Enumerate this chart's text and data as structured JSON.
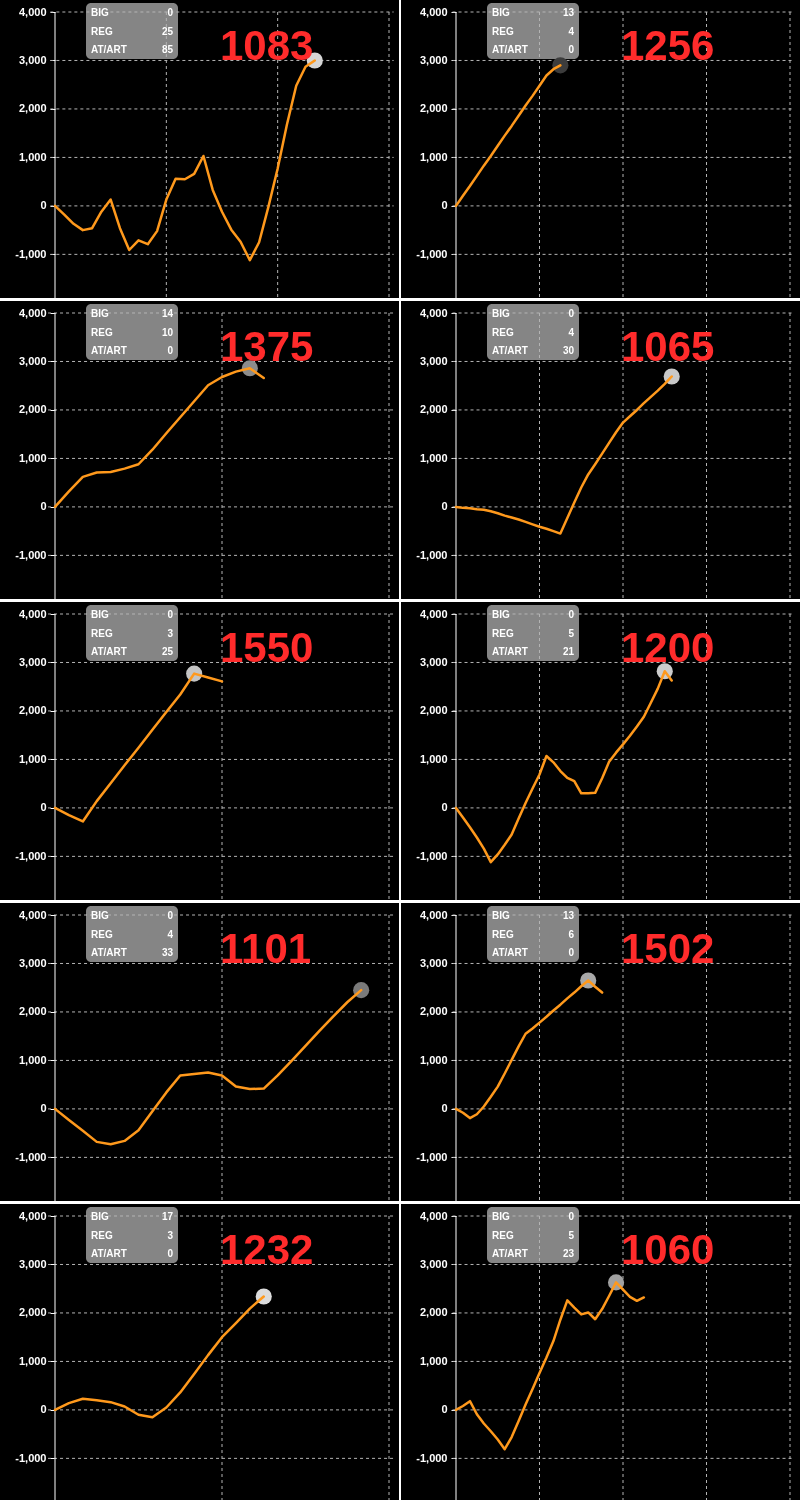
{
  "chart_data": [
    {
      "type": "line",
      "title": "1083",
      "annotations": [
        "BIG",
        "0",
        "REG",
        "25",
        "AT/ART",
        "85"
      ],
      "grid": true,
      "tick_labels": "y",
      "ylim": [
        -1900,
        4000
      ],
      "yticks": [
        {
          "value": -1000,
          "label": "-1,000"
        },
        0,
        {
          "value": 1000,
          "label": "1,000"
        },
        {
          "value": 2000,
          "label": "2,000"
        },
        {
          "value": 3000,
          "label": "3,000"
        },
        {
          "value": 4000,
          "label": "4,000"
        }
      ],
      "categories": [
        null,
        null,
        null,
        null,
        null,
        null,
        null,
        null,
        null,
        null,
        null,
        null,
        null,
        null,
        null,
        null,
        null,
        null,
        null,
        null,
        null,
        null,
        null,
        null,
        null,
        null,
        null,
        null,
        null,
        null,
        null,
        null,
        null,
        null,
        null,
        null,
        null
      ],
      "series": [
        {
          "color": "#ff991c",
          "values": [
            0,
            -180,
            -370,
            -500,
            -460,
            -120,
            130,
            -460,
            -910,
            -710,
            -790,
            -520,
            130,
            560,
            550,
            660,
            1030,
            330,
            -120,
            -490,
            -740,
            -1120,
            -750,
            -20,
            770,
            1680,
            2480,
            2870,
            3000,
            null,
            null,
            null,
            null,
            null,
            null,
            null,
            null
          ]
        },
        {
          "type": "scatter",
          "marker": "circle",
          "color": "#d6d6d6",
          "values": [
            null,
            null,
            null,
            null,
            null,
            null,
            null,
            null,
            null,
            null,
            null,
            null,
            null,
            null,
            null,
            null,
            null,
            null,
            null,
            null,
            null,
            null,
            null,
            null,
            null,
            null,
            null,
            null,
            3000,
            null,
            null,
            null,
            null,
            null,
            null,
            null,
            null
          ]
        }
      ]
    },
    {
      "type": "line",
      "title": "1256",
      "annotations": [
        "BIG",
        "13",
        "REG",
        "4",
        "AT/ART",
        "0"
      ],
      "grid": true,
      "tick_labels": "y",
      "ylim": [
        -1900,
        4000
      ],
      "yticks": [
        {
          "value": -1000,
          "label": "-1,000"
        },
        0,
        {
          "value": 1000,
          "label": "1,000"
        },
        {
          "value": 2000,
          "label": "2,000"
        },
        {
          "value": 3000,
          "label": "3,000"
        },
        {
          "value": 4000,
          "label": "4,000"
        }
      ],
      "categories": [
        null,
        null,
        null,
        null,
        null,
        null,
        null,
        null,
        null,
        null,
        null,
        null,
        null,
        null,
        null,
        null,
        null,
        null,
        null,
        null,
        null,
        null,
        null,
        null,
        null,
        null,
        null,
        null,
        null,
        null,
        null,
        null,
        null,
        null,
        null,
        null,
        null,
        null,
        null,
        null,
        null,
        null,
        null,
        null,
        null,
        null,
        null,
        null,
        null
      ],
      "series": [
        {
          "color": "#ff991c",
          "values": [
            0,
            210,
            410,
            620,
            830,
            1030,
            1240,
            1450,
            1650,
            1860,
            2070,
            2270,
            2480,
            2690,
            2820,
            2900,
            null,
            null,
            null,
            null,
            null,
            null,
            null,
            null,
            null,
            null,
            null,
            null,
            null,
            null,
            null,
            null,
            null,
            null,
            null,
            null,
            null,
            null,
            null,
            null,
            null,
            null,
            null,
            null,
            null,
            null,
            null,
            null,
            null
          ]
        },
        {
          "type": "scatter",
          "marker": "circle",
          "color": "#3c3c3c",
          "values": [
            null,
            null,
            null,
            null,
            null,
            null,
            null,
            null,
            null,
            null,
            null,
            null,
            null,
            null,
            null,
            2900,
            null,
            null,
            null,
            null,
            null,
            null,
            null,
            null,
            null,
            null,
            null,
            null,
            null,
            null,
            null,
            null,
            null,
            null,
            null,
            null,
            null,
            null,
            null,
            null,
            null,
            null,
            null,
            null,
            null,
            null,
            null,
            null,
            null
          ]
        }
      ]
    },
    {
      "type": "line",
      "title": "1375",
      "annotations": [
        "BIG",
        "14",
        "REG",
        "10",
        "AT/ART",
        "0"
      ],
      "grid": true,
      "tick_labels": "y",
      "ylim": [
        -1900,
        4000
      ],
      "yticks": [
        {
          "value": -1000,
          "label": "-1,000"
        },
        0,
        {
          "value": 1000,
          "label": "1,000"
        },
        {
          "value": 2000,
          "label": "2,000"
        },
        {
          "value": 3000,
          "label": "3,000"
        },
        {
          "value": 4000,
          "label": "4,000"
        }
      ],
      "categories": [
        null,
        null,
        null,
        null,
        null,
        null,
        null,
        null,
        null,
        null,
        null,
        null,
        null,
        null,
        null,
        null,
        null,
        null,
        null,
        null,
        null,
        null,
        null,
        null,
        null
      ],
      "series": [
        {
          "color": "#ff991c",
          "values": [
            0,
            320,
            620,
            710,
            720,
            790,
            880,
            1180,
            1520,
            1850,
            2180,
            2510,
            2680,
            2790,
            2860,
            2660,
            null,
            null,
            null,
            null,
            null,
            null,
            null,
            null,
            null
          ]
        },
        {
          "type": "scatter",
          "marker": "circle",
          "color": "#8c8c8c",
          "values": [
            null,
            null,
            null,
            null,
            null,
            null,
            null,
            null,
            null,
            null,
            null,
            null,
            null,
            null,
            2860,
            null,
            null,
            null,
            null,
            null,
            null,
            null,
            null,
            null,
            null
          ]
        }
      ]
    },
    {
      "type": "line",
      "title": "1065",
      "annotations": [
        "BIG",
        "0",
        "REG",
        "4",
        "AT/ART",
        "30"
      ],
      "grid": true,
      "tick_labels": "y",
      "ylim": [
        -1900,
        4000
      ],
      "yticks": [
        {
          "value": -1000,
          "label": "-1,000"
        },
        0,
        {
          "value": 1000,
          "label": "1,000"
        },
        {
          "value": 2000,
          "label": "2,000"
        },
        {
          "value": 3000,
          "label": "3,000"
        },
        {
          "value": 4000,
          "label": "4,000"
        }
      ],
      "categories": [
        null,
        null,
        null,
        null,
        null,
        null,
        null,
        null,
        null,
        null,
        null,
        null,
        null,
        null,
        null,
        null,
        null,
        null,
        null,
        null,
        null,
        null,
        null,
        null,
        null,
        null,
        null,
        null,
        null,
        null,
        null,
        null,
        null,
        null,
        null,
        null,
        null,
        null,
        null,
        null,
        null,
        null,
        null,
        null,
        null,
        null,
        null,
        null,
        null
      ],
      "series": [
        {
          "color": "#ff991c",
          "values": [
            0,
            -20,
            -30,
            -50,
            -60,
            -90,
            -130,
            -180,
            -220,
            -260,
            -310,
            -360,
            -410,
            -450,
            -500,
            -550,
            -230,
            90,
            400,
            670,
            880,
            1100,
            1320,
            1540,
            1740,
            1870,
            2000,
            2140,
            2270,
            2400,
            2540,
            2690,
            null,
            null,
            null,
            null,
            null,
            null,
            null,
            null,
            null,
            null,
            null,
            null,
            null,
            null,
            null,
            null,
            null
          ]
        },
        {
          "type": "scatter",
          "marker": "circle",
          "color": "#c8c8c8",
          "values": [
            null,
            null,
            null,
            null,
            null,
            null,
            null,
            null,
            null,
            null,
            null,
            null,
            null,
            null,
            null,
            null,
            null,
            null,
            null,
            null,
            null,
            null,
            null,
            null,
            null,
            null,
            null,
            null,
            null,
            null,
            null,
            2690,
            null,
            null,
            null,
            null,
            null,
            null,
            null,
            null,
            null,
            null,
            null,
            null,
            null,
            null,
            null,
            null,
            null
          ]
        }
      ]
    },
    {
      "type": "line",
      "title": "1550",
      "annotations": [
        "BIG",
        "0",
        "REG",
        "3",
        "AT/ART",
        "25"
      ],
      "grid": true,
      "tick_labels": "y",
      "ylim": [
        -1900,
        4000
      ],
      "yticks": [
        {
          "value": -1000,
          "label": "-1,000"
        },
        0,
        {
          "value": 1000,
          "label": "1,000"
        },
        {
          "value": 2000,
          "label": "2,000"
        },
        {
          "value": 3000,
          "label": "3,000"
        },
        {
          "value": 4000,
          "label": "4,000"
        }
      ],
      "categories": [
        null,
        null,
        null,
        null,
        null,
        null,
        null,
        null,
        null,
        null,
        null,
        null,
        null,
        null,
        null,
        null,
        null,
        null,
        null,
        null,
        null,
        null,
        null,
        null,
        null
      ],
      "series": [
        {
          "color": "#ff991c",
          "values": [
            0,
            -150,
            -280,
            140,
            510,
            880,
            1240,
            1610,
            1980,
            2340,
            2770,
            2690,
            2610,
            null,
            null,
            null,
            null,
            null,
            null,
            null,
            null,
            null,
            null,
            null,
            null
          ]
        },
        {
          "type": "scatter",
          "marker": "circle",
          "color": "#c4c4c4",
          "values": [
            null,
            null,
            null,
            null,
            null,
            null,
            null,
            null,
            null,
            null,
            2770,
            null,
            null,
            null,
            null,
            null,
            null,
            null,
            null,
            null,
            null,
            null,
            null,
            null,
            null
          ]
        }
      ]
    },
    {
      "type": "line",
      "title": "1200",
      "annotations": [
        "BIG",
        "0",
        "REG",
        "5",
        "AT/ART",
        "21"
      ],
      "grid": true,
      "tick_labels": "y",
      "ylim": [
        -1900,
        4000
      ],
      "yticks": [
        {
          "value": -1000,
          "label": "-1,000"
        },
        0,
        {
          "value": 1000,
          "label": "1,000"
        },
        {
          "value": 2000,
          "label": "2,000"
        },
        {
          "value": 3000,
          "label": "3,000"
        },
        {
          "value": 4000,
          "label": "4,000"
        }
      ],
      "categories": [
        null,
        null,
        null,
        null,
        null,
        null,
        null,
        null,
        null,
        null,
        null,
        null,
        null,
        null,
        null,
        null,
        null,
        null,
        null,
        null,
        null,
        null,
        null,
        null,
        null,
        null,
        null,
        null,
        null,
        null,
        null,
        null,
        null,
        null,
        null,
        null,
        null,
        null,
        null,
        null,
        null,
        null,
        null,
        null,
        null,
        null,
        null,
        null,
        null
      ],
      "series": [
        {
          "color": "#ff991c",
          "values": [
            0,
            -200,
            -400,
            -610,
            -840,
            -1120,
            -960,
            -760,
            -550,
            -220,
            100,
            400,
            690,
            1070,
            940,
            760,
            620,
            550,
            300,
            300,
            310,
            610,
            950,
            1140,
            1310,
            1490,
            1680,
            1880,
            2170,
            2460,
            2820,
            2630,
            null,
            null,
            null,
            null,
            null,
            null,
            null,
            null,
            null,
            null,
            null,
            null,
            null,
            null,
            null,
            null,
            null
          ]
        },
        {
          "type": "scatter",
          "marker": "circle",
          "color": "#cccccc",
          "values": [
            null,
            null,
            null,
            null,
            null,
            null,
            null,
            null,
            null,
            null,
            null,
            null,
            null,
            null,
            null,
            null,
            null,
            null,
            null,
            null,
            null,
            null,
            null,
            null,
            null,
            null,
            null,
            null,
            null,
            null,
            2820,
            null,
            null,
            null,
            null,
            null,
            null,
            null,
            null,
            null,
            null,
            null,
            null,
            null,
            null,
            null,
            null,
            null,
            null
          ]
        }
      ]
    },
    {
      "type": "line",
      "title": "1101",
      "annotations": [
        "BIG",
        "0",
        "REG",
        "4",
        "AT/ART",
        "33"
      ],
      "grid": true,
      "tick_labels": "y",
      "ylim": [
        -1900,
        4000
      ],
      "yticks": [
        {
          "value": -1000,
          "label": "-1,000"
        },
        0,
        {
          "value": 1000,
          "label": "1,000"
        },
        {
          "value": 2000,
          "label": "2,000"
        },
        {
          "value": 3000,
          "label": "3,000"
        },
        {
          "value": 4000,
          "label": "4,000"
        }
      ],
      "categories": [
        null,
        null,
        null,
        null,
        null,
        null,
        null,
        null,
        null,
        null,
        null,
        null,
        null,
        null,
        null,
        null,
        null,
        null,
        null,
        null,
        null,
        null,
        null,
        null,
        null
      ],
      "series": [
        {
          "color": "#ff991c",
          "values": [
            0,
            -230,
            -450,
            -680,
            -730,
            -660,
            -440,
            -50,
            340,
            690,
            720,
            750,
            690,
            460,
            410,
            420,
            690,
            990,
            1300,
            1610,
            1910,
            2200,
            2450,
            null,
            null
          ]
        },
        {
          "type": "scatter",
          "marker": "circle",
          "color": "#7a7a7a",
          "values": [
            null,
            null,
            null,
            null,
            null,
            null,
            null,
            null,
            null,
            null,
            null,
            null,
            null,
            null,
            null,
            null,
            null,
            null,
            null,
            null,
            null,
            null,
            2450,
            null,
            null
          ]
        }
      ]
    },
    {
      "type": "line",
      "title": "1502",
      "annotations": [
        "BIG",
        "13",
        "REG",
        "6",
        "AT/ART",
        "0"
      ],
      "grid": true,
      "tick_labels": "y",
      "ylim": [
        -1900,
        4000
      ],
      "yticks": [
        {
          "value": -1000,
          "label": "-1,000"
        },
        0,
        {
          "value": 1000,
          "label": "1,000"
        },
        {
          "value": 2000,
          "label": "2,000"
        },
        {
          "value": 3000,
          "label": "3,000"
        },
        {
          "value": 4000,
          "label": "4,000"
        }
      ],
      "categories": [
        null,
        null,
        null,
        null,
        null,
        null,
        null,
        null,
        null,
        null,
        null,
        null,
        null,
        null,
        null,
        null,
        null,
        null,
        null,
        null,
        null,
        null,
        null,
        null,
        null,
        null,
        null,
        null,
        null,
        null,
        null,
        null,
        null,
        null,
        null,
        null,
        null,
        null,
        null,
        null,
        null,
        null,
        null,
        null,
        null,
        null,
        null,
        null,
        null
      ],
      "series": [
        {
          "color": "#ff991c",
          "values": [
            0,
            -80,
            -190,
            -110,
            50,
            250,
            460,
            730,
            1010,
            1290,
            1550,
            1660,
            1780,
            1900,
            2030,
            2150,
            2280,
            2400,
            2530,
            2650,
            2520,
            2400,
            null,
            null,
            null,
            null,
            null,
            null,
            null,
            null,
            null,
            null,
            null,
            null,
            null,
            null,
            null,
            null,
            null,
            null,
            null,
            null,
            null,
            null,
            null,
            null,
            null,
            null,
            null
          ]
        },
        {
          "type": "scatter",
          "marker": "circle",
          "color": "#a8a8a8",
          "values": [
            null,
            null,
            null,
            null,
            null,
            null,
            null,
            null,
            null,
            null,
            null,
            null,
            null,
            null,
            null,
            null,
            null,
            null,
            null,
            2650,
            null,
            null,
            null,
            null,
            null,
            null,
            null,
            null,
            null,
            null,
            null,
            null,
            null,
            null,
            null,
            null,
            null,
            null,
            null,
            null,
            null,
            null,
            null,
            null,
            null,
            null,
            null,
            null,
            null
          ]
        }
      ]
    },
    {
      "type": "line",
      "title": "1232",
      "annotations": [
        "BIG",
        "17",
        "REG",
        "3",
        "AT/ART",
        "0"
      ],
      "grid": true,
      "tick_labels": "y",
      "ylim": [
        -1900,
        4000
      ],
      "yticks": [
        {
          "value": -1000,
          "label": "-1,000"
        },
        0,
        {
          "value": 1000,
          "label": "1,000"
        },
        {
          "value": 2000,
          "label": "2,000"
        },
        {
          "value": 3000,
          "label": "3,000"
        },
        {
          "value": 4000,
          "label": "4,000"
        }
      ],
      "categories": [
        null,
        null,
        null,
        null,
        null,
        null,
        null,
        null,
        null,
        null,
        null,
        null,
        null,
        null,
        null,
        null,
        null,
        null,
        null,
        null,
        null,
        null,
        null,
        null,
        null
      ],
      "series": [
        {
          "color": "#ff991c",
          "values": [
            0,
            140,
            230,
            200,
            160,
            70,
            -100,
            -150,
            50,
            360,
            740,
            1130,
            1500,
            1790,
            2090,
            2340,
            null,
            null,
            null,
            null,
            null,
            null,
            null,
            null,
            null
          ]
        },
        {
          "type": "scatter",
          "marker": "circle",
          "color": "#dcdcdc",
          "values": [
            null,
            null,
            null,
            null,
            null,
            null,
            null,
            null,
            null,
            null,
            null,
            null,
            null,
            null,
            null,
            2340,
            null,
            null,
            null,
            null,
            null,
            null,
            null,
            null,
            null
          ]
        }
      ]
    },
    {
      "type": "line",
      "title": "1060",
      "annotations": [
        "BIG",
        "0",
        "REG",
        "5",
        "AT/ART",
        "23"
      ],
      "grid": true,
      "tick_labels": "y",
      "ylim": [
        -1900,
        4000
      ],
      "yticks": [
        {
          "value": -1000,
          "label": "-1,000"
        },
        0,
        {
          "value": 1000,
          "label": "1,000"
        },
        {
          "value": 2000,
          "label": "2,000"
        },
        {
          "value": 3000,
          "label": "3,000"
        },
        {
          "value": 4000,
          "label": "4,000"
        }
      ],
      "categories": [
        null,
        null,
        null,
        null,
        null,
        null,
        null,
        null,
        null,
        null,
        null,
        null,
        null,
        null,
        null,
        null,
        null,
        null,
        null,
        null,
        null,
        null,
        null,
        null,
        null,
        null,
        null,
        null,
        null,
        null,
        null,
        null,
        null,
        null,
        null,
        null,
        null,
        null,
        null,
        null,
        null,
        null,
        null,
        null,
        null,
        null,
        null,
        null,
        null
      ],
      "series": [
        {
          "color": "#ff991c",
          "values": [
            0,
            80,
            180,
            -90,
            -280,
            -440,
            -610,
            -810,
            -560,
            -230,
            110,
            430,
            760,
            1080,
            1420,
            1860,
            2260,
            2110,
            1970,
            2010,
            1870,
            2080,
            2350,
            2630,
            2480,
            2330,
            2250,
            2320,
            null,
            null,
            null,
            null,
            null,
            null,
            null,
            null,
            null,
            null,
            null,
            null,
            null,
            null,
            null,
            null,
            null,
            null,
            null,
            null,
            null
          ]
        },
        {
          "type": "scatter",
          "marker": "circle",
          "color": "#a0a0a0",
          "values": [
            null,
            null,
            null,
            null,
            null,
            null,
            null,
            null,
            null,
            null,
            null,
            null,
            null,
            null,
            null,
            null,
            null,
            null,
            null,
            null,
            null,
            null,
            null,
            2630,
            null,
            null,
            null,
            null,
            null,
            null,
            null,
            null,
            null,
            null,
            null,
            null,
            null,
            null,
            null,
            null,
            null,
            null,
            null,
            null,
            null,
            null,
            null,
            null,
            null
          ]
        }
      ]
    }
  ]
}
